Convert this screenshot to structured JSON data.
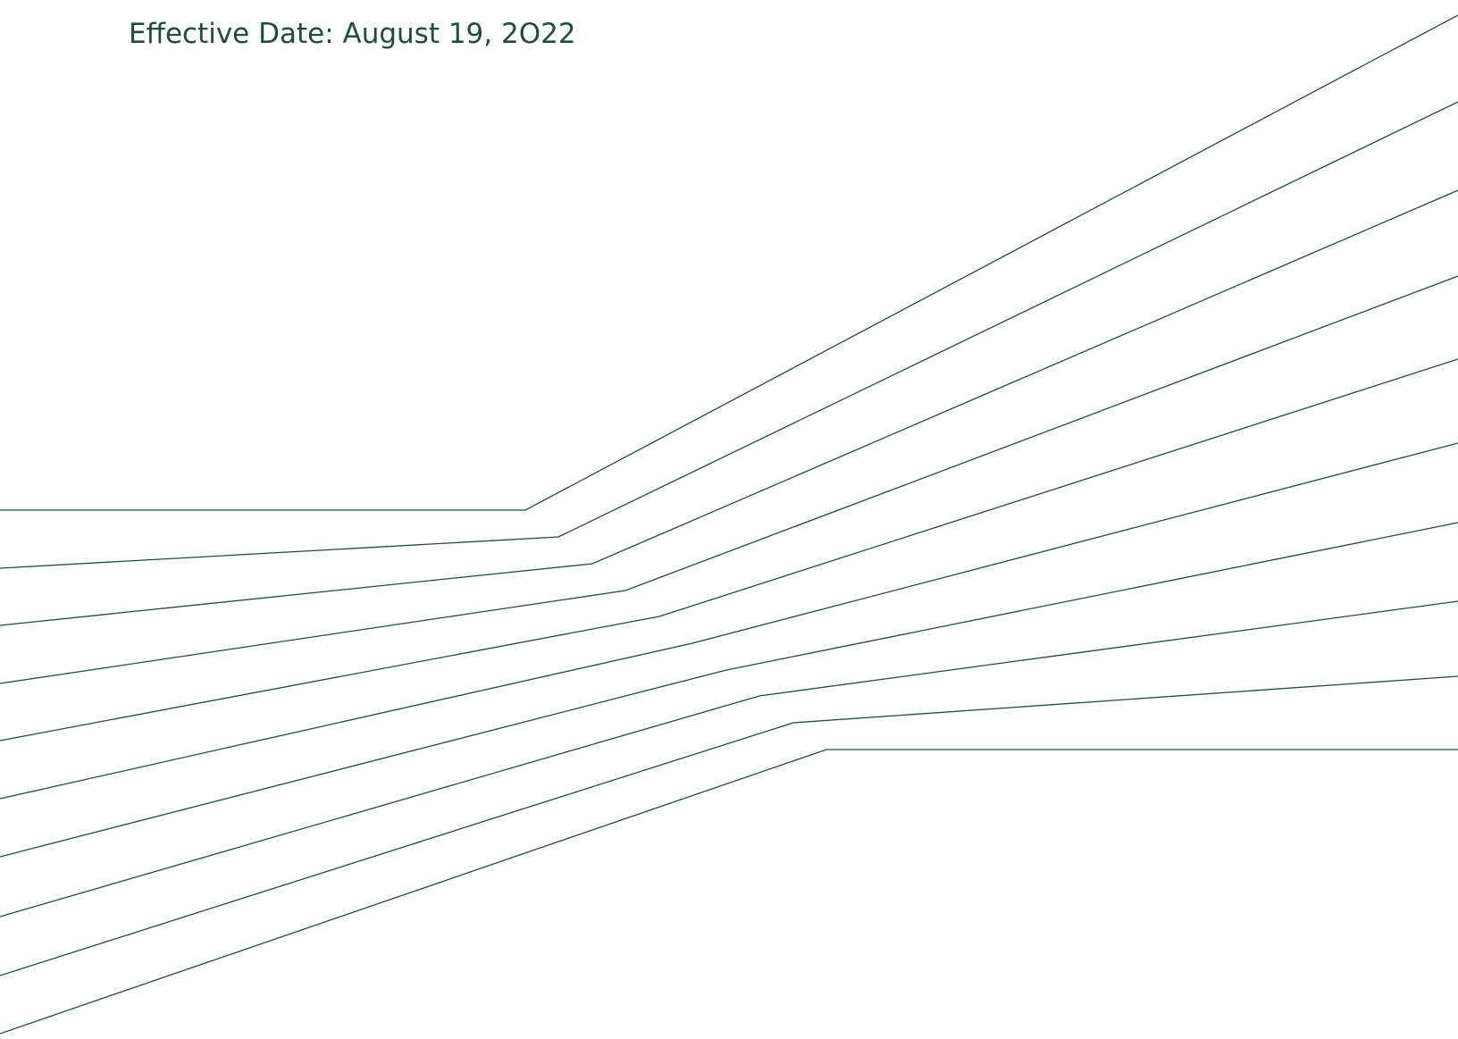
{
  "header": {
    "effective_date": "Effective Date: August 19, 2O22"
  },
  "colors": {
    "brand_green": "#1f4d3a",
    "background": "#ffffff"
  },
  "decoration": {
    "icon": "converging-lines-graphic",
    "line_count": 10
  }
}
